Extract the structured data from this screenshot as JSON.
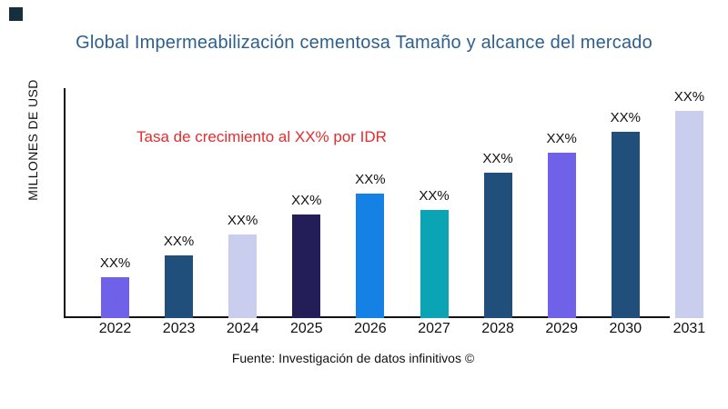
{
  "brand_mark": {
    "color": "#15303c"
  },
  "title": {
    "text": "Global Impermeabilización cementosa Tamaño y alcance del mercado",
    "color": "#2e608f"
  },
  "y_axis": {
    "label": "MILLONES DE USD"
  },
  "annotation": {
    "text": "Tasa de crecimiento al XX% por IDR",
    "color": "#e72b2f"
  },
  "source": {
    "text": "Fuente: Investigación de datos infinitivos ©"
  },
  "chart_data": {
    "type": "bar",
    "title": "Global Impermeabilización cementosa Tamaño y alcance del mercado",
    "xlabel": "",
    "ylabel": "MILLONES DE USD",
    "categories": [
      "2022",
      "2023",
      "2024",
      "2025",
      "2026",
      "2027",
      "2028",
      "2029",
      "2030",
      "2031"
    ],
    "value_labels": [
      "XX%",
      "XX%",
      "XX%",
      "XX%",
      "XX%",
      "XX%",
      "XX%",
      "XX%",
      "XX%",
      "XX%"
    ],
    "values_relative": [
      45,
      69,
      92,
      114,
      137,
      119,
      160,
      182,
      205,
      228
    ],
    "bar_colors": [
      "#7062e8",
      "#214f7c",
      "#c9cdee",
      "#231d58",
      "#1581e4",
      "#0aa4b4",
      "#214f7c",
      "#7062e8",
      "#214f7c",
      "#c9cdee"
    ],
    "annotation": "Tasa de crecimiento al XX% por IDR",
    "grid": false,
    "legend": false
  }
}
